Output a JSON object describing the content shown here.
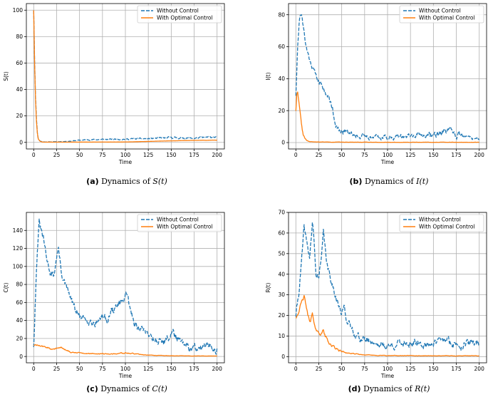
{
  "chart_data": [
    {
      "type": "line",
      "panel": "a",
      "caption_label": "(a)",
      "caption_text": "Dynamics of",
      "caption_var": "S(t)",
      "xlabel": "Time",
      "ylabel": "S(t)",
      "xlim": [
        -8,
        208
      ],
      "ylim": [
        -5,
        105
      ],
      "xticks": [
        0,
        25,
        50,
        75,
        100,
        125,
        150,
        175,
        200
      ],
      "yticks": [
        0,
        20,
        40,
        60,
        80,
        100
      ],
      "series": [
        {
          "name": "Without Control",
          "color": "#1f77b4",
          "dash": true,
          "points": [
            [
              0,
              100
            ],
            [
              1,
              62
            ],
            [
              2,
              35
            ],
            [
              3,
              18
            ],
            [
              4,
              8
            ],
            [
              5,
              3
            ],
            [
              7,
              1
            ],
            [
              10,
              0.4
            ],
            [
              20,
              0.4
            ],
            [
              30,
              0.6
            ],
            [
              40,
              0.9
            ],
            [
              50,
              1.6
            ],
            [
              60,
              2.0
            ],
            [
              75,
              2.2
            ],
            [
              90,
              2.4
            ],
            [
              100,
              2.5
            ],
            [
              110,
              2.6
            ],
            [
              125,
              2.8
            ],
            [
              140,
              3.2
            ],
            [
              150,
              3.6
            ],
            [
              160,
              3.4
            ],
            [
              175,
              3.1
            ],
            [
              190,
              3.8
            ],
            [
              200,
              4.2
            ]
          ],
          "noise": 0.7,
          "seed": 11
        },
        {
          "name": "With Optimal Control",
          "color": "#ff7f0e",
          "dash": false,
          "points": [
            [
              0,
              100
            ],
            [
              1,
              60
            ],
            [
              2,
              33
            ],
            [
              3,
              16
            ],
            [
              4,
              7
            ],
            [
              5,
              2.5
            ],
            [
              7,
              0.8
            ],
            [
              10,
              0.2
            ],
            [
              50,
              0.2
            ],
            [
              100,
              0.3
            ],
            [
              120,
              0.6
            ],
            [
              140,
              1.0
            ],
            [
              160,
              1.3
            ],
            [
              175,
              1.5
            ],
            [
              190,
              1.6
            ],
            [
              200,
              1.7
            ]
          ],
          "noise": 0.15,
          "seed": 12
        }
      ]
    },
    {
      "type": "line",
      "panel": "b",
      "caption_label": "(b)",
      "caption_text": "Dynamics of",
      "caption_var": "I(t)",
      "xlabel": "Time",
      "ylabel": "I(t)",
      "xlim": [
        -8,
        208
      ],
      "ylim": [
        -4,
        87
      ],
      "xticks": [
        0,
        25,
        50,
        75,
        100,
        125,
        150,
        175,
        200
      ],
      "yticks": [
        0,
        20,
        40,
        60,
        80
      ],
      "series": [
        {
          "name": "Without Control",
          "color": "#1f77b4",
          "dash": true,
          "points": [
            [
              0,
              30
            ],
            [
              2,
              62
            ],
            [
              4,
              78
            ],
            [
              6,
              82
            ],
            [
              8,
              72
            ],
            [
              10,
              65
            ],
            [
              12,
              58
            ],
            [
              15,
              52
            ],
            [
              18,
              48
            ],
            [
              22,
              42
            ],
            [
              25,
              38
            ],
            [
              28,
              36
            ],
            [
              32,
              32
            ],
            [
              36,
              28
            ],
            [
              40,
              22
            ],
            [
              42,
              15
            ],
            [
              45,
              9
            ],
            [
              48,
              6
            ],
            [
              52,
              7
            ],
            [
              56,
              8
            ],
            [
              60,
              6.5
            ],
            [
              65,
              5
            ],
            [
              70,
              4
            ],
            [
              80,
              3.8
            ],
            [
              95,
              3.5
            ],
            [
              110,
              3.5
            ],
            [
              125,
              4
            ],
            [
              140,
              4.5
            ],
            [
              150,
              5
            ],
            [
              158,
              6.5
            ],
            [
              165,
              7
            ],
            [
              172,
              6
            ],
            [
              180,
              4
            ],
            [
              190,
              3
            ],
            [
              200,
              2.5
            ]
          ],
          "noise": 1.4,
          "seed": 21
        },
        {
          "name": "With Optimal Control",
          "color": "#ff7f0e",
          "dash": false,
          "points": [
            [
              0,
              20
            ],
            [
              1,
              30
            ],
            [
              2,
              32
            ],
            [
              3,
              27
            ],
            [
              4,
              22
            ],
            [
              5,
              17
            ],
            [
              6,
              12
            ],
            [
              7,
              8
            ],
            [
              8,
              5
            ],
            [
              10,
              2.5
            ],
            [
              12,
              1.2
            ],
            [
              15,
              0.6
            ],
            [
              20,
              0.4
            ],
            [
              40,
              0.3
            ],
            [
              100,
              0.2
            ],
            [
              200,
              0.2
            ]
          ],
          "noise": 0.4,
          "seed": 22
        }
      ]
    },
    {
      "type": "line",
      "panel": "c",
      "caption_label": "(c)",
      "caption_text": "Dynamics of",
      "caption_var": "C(t)",
      "xlabel": "Time",
      "ylabel": "C(t)",
      "xlim": [
        -8,
        208
      ],
      "ylim": [
        -7,
        160
      ],
      "xticks": [
        0,
        25,
        50,
        75,
        100,
        125,
        150,
        175,
        200
      ],
      "yticks": [
        0,
        20,
        40,
        60,
        80,
        100,
        120,
        140
      ],
      "series": [
        {
          "name": "Without Control",
          "color": "#1f77b4",
          "dash": true,
          "points": [
            [
              0,
              12
            ],
            [
              2,
              70
            ],
            [
              4,
              120
            ],
            [
              6,
              148
            ],
            [
              8,
              140
            ],
            [
              11,
              128
            ],
            [
              14,
              108
            ],
            [
              18,
              95
            ],
            [
              22,
              88
            ],
            [
              25,
              112
            ],
            [
              27,
              120
            ],
            [
              30,
              95
            ],
            [
              34,
              80
            ],
            [
              38,
              70
            ],
            [
              42,
              60
            ],
            [
              45,
              52
            ],
            [
              50,
              44
            ],
            [
              55,
              40
            ],
            [
              60,
              42
            ],
            [
              65,
              38
            ],
            [
              70,
              40
            ],
            [
              75,
              45
            ],
            [
              80,
              42
            ],
            [
              85,
              50
            ],
            [
              90,
              55
            ],
            [
              95,
              58
            ],
            [
              100,
              68
            ],
            [
              103,
              62
            ],
            [
              106,
              48
            ],
            [
              110,
              38
            ],
            [
              115,
              32
            ],
            [
              120,
              29
            ],
            [
              125,
              26
            ],
            [
              130,
              22
            ],
            [
              135,
              18
            ],
            [
              140,
              17
            ],
            [
              145,
              18
            ],
            [
              150,
              25
            ],
            [
              152,
              28
            ],
            [
              155,
              22
            ],
            [
              160,
              15
            ],
            [
              165,
              11
            ],
            [
              170,
              8
            ],
            [
              175,
              9
            ],
            [
              180,
              11
            ],
            [
              190,
              10
            ],
            [
              200,
              9
            ]
          ],
          "noise": 3.2,
          "seed": 31
        },
        {
          "name": "With Optimal Control",
          "color": "#ff7f0e",
          "dash": false,
          "points": [
            [
              0,
              13
            ],
            [
              5,
              12
            ],
            [
              10,
              11
            ],
            [
              15,
              10
            ],
            [
              20,
              8
            ],
            [
              25,
              9
            ],
            [
              30,
              10
            ],
            [
              35,
              7
            ],
            [
              40,
              5
            ],
            [
              50,
              4
            ],
            [
              60,
              3.5
            ],
            [
              70,
              3
            ],
            [
              80,
              3
            ],
            [
              90,
              3
            ],
            [
              100,
              4
            ],
            [
              105,
              3.5
            ],
            [
              110,
              3
            ],
            [
              120,
              2
            ],
            [
              130,
              1.3
            ],
            [
              150,
              0.8
            ],
            [
              175,
              0.6
            ],
            [
              200,
              0.5
            ]
          ],
          "noise": 0.6,
          "seed": 32
        }
      ]
    },
    {
      "type": "line",
      "panel": "d",
      "caption_label": "(d)",
      "caption_text": "Dynamics of",
      "caption_var": "R(t)",
      "xlabel": "Time",
      "ylabel": "R(t)",
      "xlim": [
        -8,
        208
      ],
      "ylim": [
        -3,
        70
      ],
      "xticks": [
        0,
        25,
        50,
        75,
        100,
        125,
        150,
        175,
        200
      ],
      "yticks": [
        0,
        10,
        20,
        30,
        40,
        50,
        60,
        70
      ],
      "series": [
        {
          "name": "Without Control",
          "color": "#1f77b4",
          "dash": true,
          "points": [
            [
              0,
              20
            ],
            [
              3,
              30
            ],
            [
              6,
              45
            ],
            [
              9,
              62
            ],
            [
              12,
              55
            ],
            [
              15,
              48
            ],
            [
              18,
              65
            ],
            [
              20,
              55
            ],
            [
              22,
              38
            ],
            [
              25,
              40
            ],
            [
              28,
              48
            ],
            [
              30,
              60
            ],
            [
              32,
              52
            ],
            [
              35,
              42
            ],
            [
              38,
              38
            ],
            [
              42,
              32
            ],
            [
              46,
              26
            ],
            [
              50,
              20
            ],
            [
              53,
              25
            ],
            [
              56,
              17
            ],
            [
              60,
              14
            ],
            [
              65,
              11
            ],
            [
              70,
              9
            ],
            [
              75,
              8
            ],
            [
              80,
              8
            ],
            [
              90,
              6
            ],
            [
              100,
              5
            ],
            [
              110,
              6
            ],
            [
              120,
              7
            ],
            [
              130,
              6
            ],
            [
              140,
              5.5
            ],
            [
              150,
              7
            ],
            [
              160,
              7.5
            ],
            [
              165,
              8
            ],
            [
              170,
              6
            ],
            [
              180,
              6
            ],
            [
              190,
              6.5
            ],
            [
              200,
              7
            ]
          ],
          "noise": 1.3,
          "seed": 41
        },
        {
          "name": "With Optimal Control",
          "color": "#ff7f0e",
          "dash": false,
          "points": [
            [
              0,
              19
            ],
            [
              3,
              22
            ],
            [
              6,
              26
            ],
            [
              9,
              29
            ],
            [
              11,
              25
            ],
            [
              13,
              20
            ],
            [
              16,
              17
            ],
            [
              18,
              21
            ],
            [
              20,
              15
            ],
            [
              24,
              12
            ],
            [
              28,
              11
            ],
            [
              30,
              13
            ],
            [
              32,
              10
            ],
            [
              36,
              7
            ],
            [
              40,
              5
            ],
            [
              45,
              3.5
            ],
            [
              50,
              2.5
            ],
            [
              60,
              1.5
            ],
            [
              75,
              0.8
            ],
            [
              100,
              0.5
            ],
            [
              150,
              0.4
            ],
            [
              200,
              0.4
            ]
          ],
          "noise": 0.6,
          "seed": 42
        }
      ]
    }
  ]
}
